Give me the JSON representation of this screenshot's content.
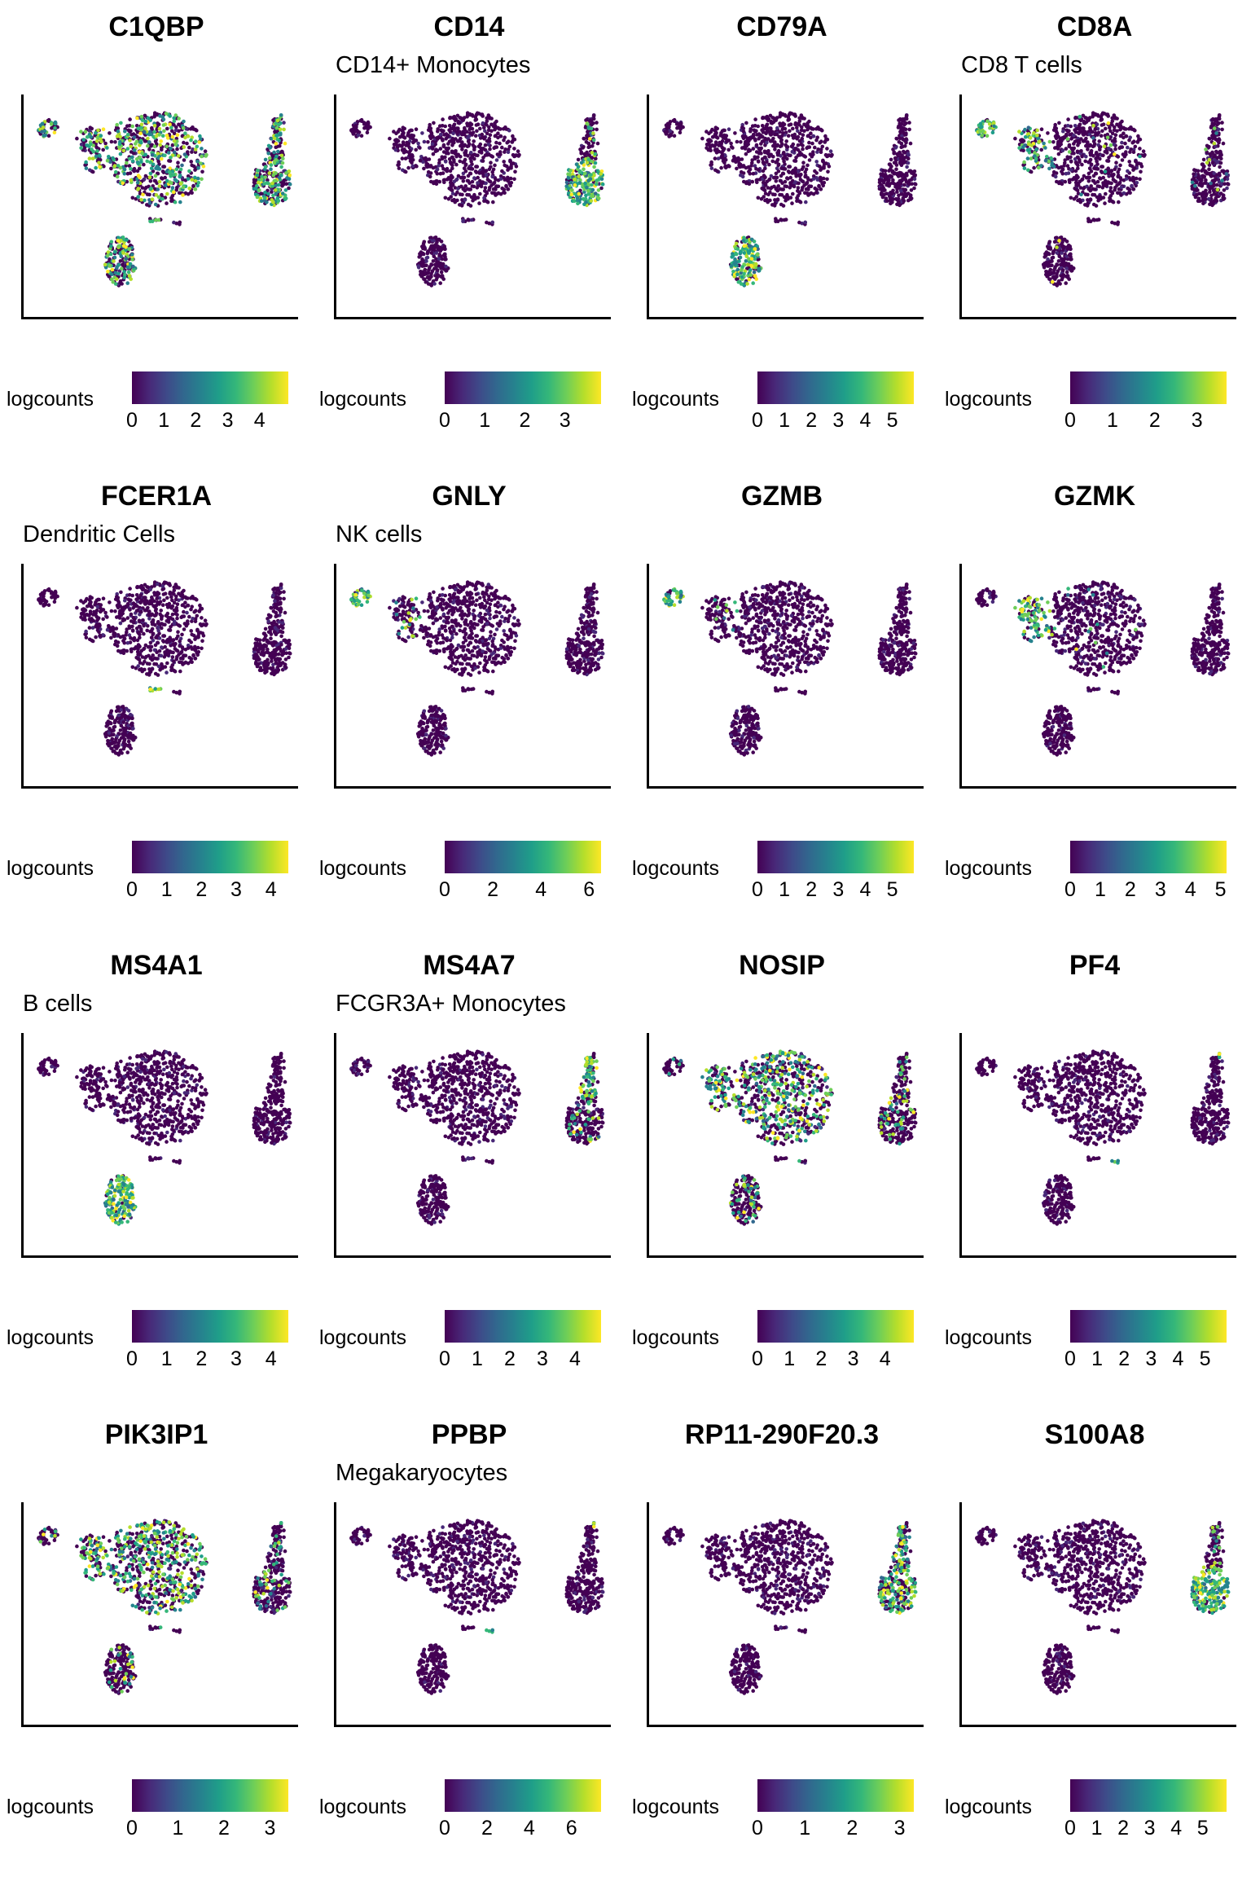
{
  "chart_data": [
    {
      "type": "scatter",
      "title": "C1QBP",
      "subtitle": "",
      "legend_title": "logcounts",
      "color_max": 4.9,
      "ticks": [
        0,
        1,
        2,
        3,
        4
      ],
      "high": "all"
    },
    {
      "type": "scatter",
      "title": "CD14",
      "subtitle": "CD14+ Monocytes",
      "legend_title": "logcounts",
      "color_max": 3.9,
      "ticks": [
        0,
        1,
        2,
        3
      ],
      "high": "mono_low"
    },
    {
      "type": "scatter",
      "title": "CD79A",
      "subtitle": "",
      "legend_title": "logcounts",
      "color_max": 5.8,
      "ticks": [
        0,
        1,
        2,
        3,
        4,
        5
      ],
      "high": "bcell"
    },
    {
      "type": "scatter",
      "title": "CD8A",
      "subtitle": "CD8 T cells",
      "legend_title": "logcounts",
      "color_max": 3.7,
      "ticks": [
        0,
        1,
        2,
        3
      ],
      "high": "nk_cd8"
    },
    {
      "type": "scatter",
      "title": "FCER1A",
      "subtitle": "Dendritic Cells",
      "legend_title": "logcounts",
      "color_max": 4.5,
      "ticks": [
        0,
        1,
        2,
        3,
        4
      ],
      "high": "dc"
    },
    {
      "type": "scatter",
      "title": "GNLY",
      "subtitle": "NK cells",
      "legend_title": "logcounts",
      "color_max": 6.5,
      "ticks": [
        0,
        2,
        4,
        6
      ],
      "high": "nk"
    },
    {
      "type": "scatter",
      "title": "GZMB",
      "subtitle": "",
      "legend_title": "logcounts",
      "color_max": 5.8,
      "ticks": [
        0,
        1,
        2,
        3,
        4,
        5
      ],
      "high": "nk"
    },
    {
      "type": "scatter",
      "title": "GZMK",
      "subtitle": "",
      "legend_title": "logcounts",
      "color_max": 5.2,
      "ticks": [
        0,
        1,
        2,
        3,
        4,
        5
      ],
      "high": "cd8"
    },
    {
      "type": "scatter",
      "title": "MS4A1",
      "subtitle": "B cells",
      "legend_title": "logcounts",
      "color_max": 4.5,
      "ticks": [
        0,
        1,
        2,
        3,
        4
      ],
      "high": "bcell"
    },
    {
      "type": "scatter",
      "title": "MS4A7",
      "subtitle": "FCGR3A+ Monocytes",
      "legend_title": "logcounts",
      "color_max": 4.8,
      "ticks": [
        0,
        1,
        2,
        3,
        4
      ],
      "high": "mono_top"
    },
    {
      "type": "scatter",
      "title": "NOSIP",
      "subtitle": "",
      "legend_title": "logcounts",
      "color_max": 4.9,
      "ticks": [
        0,
        1,
        2,
        3,
        4
      ],
      "high": "tcells"
    },
    {
      "type": "scatter",
      "title": "PF4",
      "subtitle": "",
      "legend_title": "logcounts",
      "color_max": 5.8,
      "ticks": [
        0,
        1,
        2,
        3,
        4,
        5
      ],
      "high": "mega"
    },
    {
      "type": "scatter",
      "title": "PIK3IP1",
      "subtitle": "",
      "legend_title": "logcounts",
      "color_max": 3.4,
      "ticks": [
        0,
        1,
        2,
        3
      ],
      "high": "tcells"
    },
    {
      "type": "scatter",
      "title": "PPBP",
      "subtitle": "Megakaryocytes",
      "legend_title": "logcounts",
      "color_max": 7.4,
      "ticks": [
        0,
        2,
        4,
        6
      ],
      "high": "mega"
    },
    {
      "type": "scatter",
      "title": "RP11-290F20.3",
      "subtitle": "",
      "legend_title": "logcounts",
      "color_max": 3.3,
      "ticks": [
        0,
        1,
        2,
        3
      ],
      "high": "mono_all"
    },
    {
      "type": "scatter",
      "title": "S100A8",
      "subtitle": "",
      "legend_title": "logcounts",
      "color_max": 5.9,
      "ticks": [
        0,
        1,
        2,
        3,
        4,
        5
      ],
      "high": "mono_low"
    }
  ]
}
